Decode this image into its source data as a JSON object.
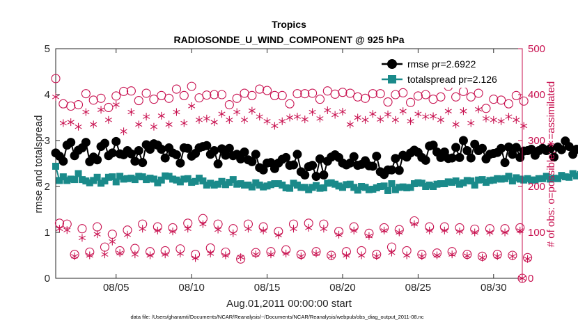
{
  "chart_data": {
    "type": "line",
    "title": "Tropics",
    "subtitle": "RADIOSONDE_U_WIND_COMPONENT @ 925 hPa",
    "xlabel": "Aug.01,2011 00:00:00 start",
    "ylabel": "rmse and totalspread",
    "ylabel_right": "# of obs: o=possible; ∗=assimilated",
    "xlim": [
      1.0,
      31.9
    ],
    "ylim": [
      0,
      5
    ],
    "ylim_right": [
      0,
      500
    ],
    "x_ticks": [
      5,
      10,
      15,
      20,
      25,
      30
    ],
    "x_tick_labels": [
      "08/05",
      "08/10",
      "08/15",
      "08/20",
      "08/25",
      "08/30"
    ],
    "y_ticks": [
      0,
      1,
      2,
      3,
      4,
      5
    ],
    "y_ticks_right": [
      0,
      100,
      200,
      300,
      400,
      500
    ],
    "time_step_days": 0.25,
    "legend_position": "top-right",
    "footer": "data file: /Users/gharamti/Documents/NCAR/Reanalysis/~/Documents/NCAR/Reanalysis/webpub/obs_diag_output_2011-08.nc",
    "series": [
      {
        "name": "rmse",
        "legend": "rmse pr=2.6922",
        "color": "#000000",
        "axis": "left",
        "values": [
          2.73,
          2.66,
          2.55,
          2.9,
          2.96,
          2.67,
          2.79,
          2.84,
          2.96,
          2.54,
          2.64,
          2.58,
          2.87,
          2.94,
          2.67,
          2.73,
          2.98,
          2.71,
          2.69,
          2.78,
          2.71,
          2.55,
          2.78,
          2.52,
          2.91,
          2.81,
          2.93,
          2.9,
          2.81,
          2.62,
          2.84,
          2.73,
          2.69,
          2.51,
          2.84,
          2.83,
          2.66,
          2.72,
          2.84,
          2.87,
          2.89,
          2.7,
          2.78,
          2.49,
          2.82,
          2.68,
          2.83,
          2.67,
          2.7,
          2.6,
          2.75,
          2.58,
          2.54,
          2.7,
          2.41,
          2.36,
          2.51,
          2.52,
          2.39,
          2.51,
          2.59,
          2.63,
          2.46,
          2.47,
          2.7,
          2.32,
          2.25,
          2.43,
          2.46,
          2.22,
          2.6,
          2.25,
          2.55,
          2.64,
          2.69,
          2.63,
          2.51,
          2.47,
          2.51,
          2.65,
          2.46,
          2.48,
          2.56,
          2.45,
          2.44,
          2.66,
          2.32,
          2.26,
          2.36,
          2.36,
          2.61,
          2.35,
          2.68,
          2.64,
          2.73,
          2.79,
          2.74,
          2.63,
          2.57,
          2.88,
          2.9,
          2.75,
          2.63,
          2.75,
          2.61,
          2.62,
          2.85,
          2.63,
          3.0,
          2.78,
          2.62,
          2.92,
          2.78,
          2.83,
          2.6,
          2.7,
          2.72,
          2.74,
          2.83,
          2.52,
          2.86,
          2.7,
          2.85,
          2.63,
          2.77,
          2.78,
          2.81,
          2.68,
          2.78,
          2.83,
          2.78,
          2.82,
          2.64,
          2.86,
          2.8,
          2.99,
          2.87,
          2.7,
          2.81,
          2.82,
          2.66,
          2.63,
          2.98,
          2.8,
          2.83,
          2.88,
          2.8,
          2.92,
          2.82,
          2.74,
          2.74,
          3.26,
          2.95,
          2.75,
          2.84,
          2.83,
          2.73,
          2.63,
          2.71,
          2.88,
          2.75,
          3.15,
          3.32,
          2.83,
          3.15,
          3.05
        ]
      },
      {
        "name": "totalspread",
        "legend": "totalspread pr=2.126",
        "color": "#1a8a8a",
        "axis": "left",
        "values": [
          2.44,
          2.13,
          2.21,
          2.13,
          2.16,
          2.15,
          2.28,
          2.15,
          2.12,
          2.08,
          2.13,
          2.2,
          2.07,
          2.12,
          2.2,
          2.21,
          2.1,
          2.22,
          2.16,
          2.17,
          2.18,
          2.15,
          2.22,
          2.21,
          2.15,
          2.18,
          2.16,
          2.08,
          2.14,
          2.23,
          2.22,
          2.16,
          2.14,
          2.1,
          2.16,
          2.17,
          2.09,
          2.11,
          2.18,
          2.12,
          2.03,
          2.07,
          2.03,
          2.05,
          2.11,
          2.04,
          2.09,
          2.15,
          2.05,
          2.06,
          2.03,
          2.03,
          1.99,
          2.08,
          2.03,
          1.99,
          2.01,
          2.04,
          2.06,
          2.06,
          2.03,
          1.97,
          1.96,
          2.07,
          2.03,
          1.98,
          1.98,
          1.93,
          1.98,
          2.02,
          1.96,
          1.97,
          2.07,
          2.08,
          2.05,
          2.01,
          1.98,
          2.04,
          2.05,
          1.98,
          1.92,
          2.0,
          1.98,
          1.93,
          1.94,
          1.97,
          2.0,
          2.01,
          1.91,
          2.06,
          1.93,
          1.98,
          1.99,
          1.97,
          1.98,
          2.06,
          2.08,
          2.07,
          2.0,
          2.03,
          2.0,
          2.05,
          2.06,
          2.06,
          2.1,
          2.09,
          2.12,
          2.05,
          2.08,
          2.13,
          2.12,
          2.03,
          2.14,
          2.15,
          2.09,
          2.13,
          2.14,
          2.17,
          2.16,
          2.17,
          2.22,
          2.12,
          2.19,
          2.16,
          2.14,
          2.17,
          2.14,
          2.14,
          2.17,
          2.17,
          2.22,
          2.16,
          2.18,
          2.17,
          2.24,
          2.21,
          2.2,
          2.28,
          2.23,
          2.26,
          2.21,
          2.21,
          2.32,
          2.26,
          2.3,
          2.28,
          2.28,
          2.34,
          2.38,
          2.37,
          2.42,
          2.41,
          2.31,
          2.38,
          2.37,
          2.36,
          2.4,
          2.38,
          2.41,
          2.34,
          2.37,
          2.35,
          2.38,
          2.39,
          2.42,
          2.17
        ]
      },
      {
        "name": "possible observations",
        "marker": "open-circle",
        "color": "#c8104f",
        "axis": "right",
        "note": "two launch cycles per day (00Z/12Z high, 06Z/18Z low)",
        "values_00z": [
          435,
          375,
          402,
          392,
          397,
          408,
          403,
          398,
          412,
          418,
          399,
          400,
          392,
          398,
          409,
          398,
          402,
          403,
          408,
          405,
          395,
          402,
          384,
          404,
          397,
          390,
          418,
          407,
          403,
          390,
          380,
          386
        ],
        "values_06z": [
          120,
          52,
          57,
          68,
          60,
          65,
          58,
          60,
          64,
          52,
          66,
          57,
          42,
          56,
          58,
          62,
          52,
          58,
          50,
          58,
          60,
          52,
          68,
          60,
          52,
          55,
          58,
          52,
          48,
          52,
          50,
          45
        ],
        "values_12z": [
          380,
          378,
          388,
          372,
          407,
          387,
          390,
          392,
          398,
          393,
          400,
          378,
          403,
          412,
          398,
          380,
          402,
          390,
          401,
          403,
          392,
          402,
          400,
          383,
          400,
          395,
          395,
          395,
          370,
          388,
          398,
          370
        ],
        "values_18z": [
          118,
          108,
          112,
          96,
          105,
          118,
          112,
          110,
          120,
          130,
          118,
          108,
          118,
          112,
          102,
          118,
          120,
          118,
          102,
          112,
          98,
          110,
          106,
          125,
          112,
          112,
          110,
          107,
          108,
          108,
          110,
          105
        ]
      },
      {
        "name": "assimilated observations",
        "marker": "asterisk",
        "color": "#c8104f",
        "axis": "right",
        "values_00z": [
          395,
          340,
          362,
          367,
          378,
          362,
          352,
          354,
          362,
          375,
          348,
          358,
          362,
          365,
          342,
          342,
          352,
          362,
          366,
          363,
          350,
          358,
          357,
          364,
          358,
          353,
          364,
          364,
          368,
          345,
          352,
          332
        ],
        "values_06z": [
          108,
          48,
          50,
          52,
          55,
          52,
          50,
          52,
          54,
          44,
          54,
          50,
          46,
          52,
          52,
          54,
          48,
          54,
          48,
          50,
          50,
          48,
          56,
          50,
          48,
          50,
          52,
          49,
          45,
          48,
          48,
          42
        ],
        "values_12z": [
          338,
          330,
          335,
          345,
          320,
          335,
          330,
          335,
          338,
          345,
          340,
          345,
          345,
          352,
          332,
          350,
          346,
          348,
          356,
          335,
          345,
          346,
          345,
          342,
          352,
          345,
          335,
          338,
          348,
          342,
          345,
          350
        ],
        "values_18z": [
          105,
          88,
          96,
          80,
          95,
          108,
          104,
          102,
          108,
          118,
          106,
          98,
          108,
          104,
          94,
          108,
          110,
          108,
          95,
          104,
          92,
          104,
          100,
          118,
          104,
          104,
          102,
          100,
          100,
          100,
          104,
          96
        ]
      }
    ]
  }
}
